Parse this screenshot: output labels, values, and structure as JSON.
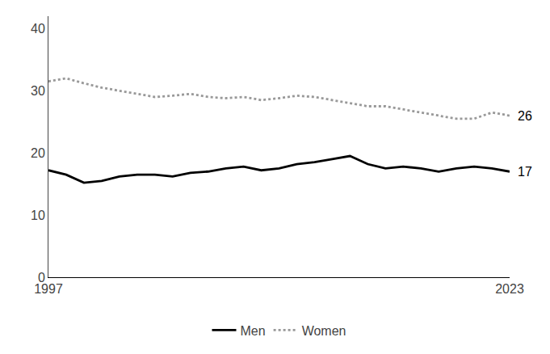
{
  "chart_data": {
    "type": "line",
    "x": [
      1997,
      1998,
      1999,
      2000,
      2001,
      2002,
      2003,
      2004,
      2005,
      2006,
      2007,
      2008,
      2009,
      2010,
      2011,
      2012,
      2013,
      2014,
      2015,
      2016,
      2017,
      2018,
      2019,
      2020,
      2021,
      2022,
      2023
    ],
    "series": [
      {
        "name": "Men",
        "color": "#000000",
        "line_style": "solid",
        "values": [
          17.2,
          16.5,
          15.2,
          15.5,
          16.2,
          16.5,
          16.5,
          16.2,
          16.8,
          17.0,
          17.5,
          17.8,
          17.2,
          17.5,
          18.2,
          18.5,
          19.0,
          19.5,
          18.2,
          17.5,
          17.8,
          17.5,
          17.0,
          17.5,
          17.8,
          17.5,
          17.0
        ]
      },
      {
        "name": "Women",
        "color": "#999999",
        "line_style": "dotted",
        "values": [
          31.5,
          32.0,
          31.2,
          30.5,
          30.0,
          29.5,
          29.0,
          29.2,
          29.5,
          29.0,
          28.8,
          29.0,
          28.5,
          28.8,
          29.2,
          29.0,
          28.5,
          28.0,
          27.5,
          27.5,
          27.0,
          26.5,
          26.0,
          25.5,
          25.5,
          26.5,
          26.0
        ]
      }
    ],
    "xlim": [
      1997,
      2023
    ],
    "xticks": [
      1997,
      2023
    ],
    "ylim": [
      0,
      42
    ],
    "yticks": [
      0,
      10,
      20,
      30,
      40
    ],
    "grid": false,
    "legend": "bottom",
    "annotations": [
      {
        "text": "17",
        "x": 2023,
        "y": 17.0,
        "color": "#000000"
      },
      {
        "text": "26",
        "x": 2023,
        "y": 26.0,
        "color": "#000000"
      }
    ]
  }
}
